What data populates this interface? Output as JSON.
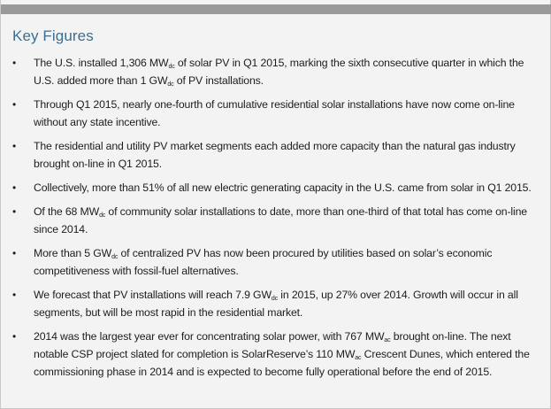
{
  "title": "Key Figures",
  "bullet_glyph": "•",
  "items": [
    {
      "parts": [
        "The U.S. installed 1,306 MW",
        "dc",
        " of solar PV in Q1 2015, marking the sixth consecutive quarter in which the U.S. added more than 1 GW",
        "dc",
        " of PV installations."
      ]
    },
    {
      "parts": [
        "Through Q1 2015, nearly one-fourth of cumulative residential solar installations have now come on-line without any state incentive."
      ]
    },
    {
      "parts": [
        "The residential and utility PV market segments each added more capacity than the natural gas industry brought on-line in Q1 2015."
      ]
    },
    {
      "parts": [
        "Collectively, more than 51% of all new electric generating capacity in the U.S. came from solar in Q1 2015."
      ]
    },
    {
      "parts": [
        "Of the 68 MW",
        "dc",
        " of community solar installations to date, more than one-third of that total has come on-line since 2014."
      ]
    },
    {
      "parts": [
        "More than 5 GW",
        "dc",
        " of centralized PV has now been procured by utilities based on solar’s economic competitiveness with fossil-fuel alternatives."
      ]
    },
    {
      "parts": [
        "We forecast that PV installations will reach 7.9 GW",
        "dc",
        " in 2015, up 27% over 2014. Growth will occur in all segments, but will be most rapid in the residential market."
      ]
    },
    {
      "parts": [
        "2014 was the largest year ever for concentrating solar power, with 767 MW",
        "ac",
        " brought on-line. The next notable CSP project slated for completion is SolarReserve’s 110 MW",
        "ac",
        " Crescent Dunes, which entered the commissioning phase in 2014 and is expected to become fully operational before the end of 2015."
      ]
    }
  ]
}
